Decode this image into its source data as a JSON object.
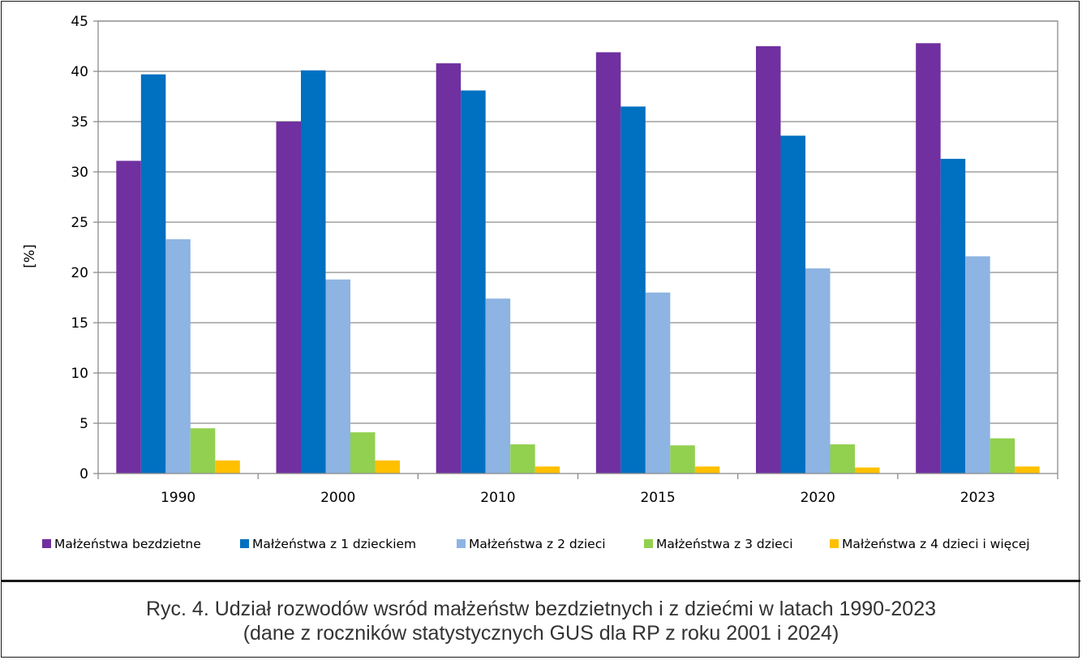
{
  "chart_data": {
    "type": "bar",
    "title": "",
    "xlabel": "",
    "ylabel": "[%]",
    "ylim": [
      0,
      45
    ],
    "ytick_step": 5,
    "yticks": [
      "0",
      "5",
      "10",
      "15",
      "20",
      "25",
      "30",
      "35",
      "40",
      "45"
    ],
    "grid": true,
    "legend_position": "bottom",
    "categories": [
      "1990",
      "2000",
      "2010",
      "2015",
      "2020",
      "2023"
    ],
    "series": [
      {
        "name": "Małżeństwa bezdzietne",
        "color": "#7030A0",
        "values": [
          31.1,
          35.0,
          40.8,
          41.9,
          42.5,
          42.8
        ]
      },
      {
        "name": "Małżeństwa z 1 dzieckiem",
        "color": "#0070C0",
        "values": [
          39.7,
          40.1,
          38.1,
          36.5,
          33.6,
          31.3
        ]
      },
      {
        "name": "Małżeństwa z 2 dzieci",
        "color": "#8DB4E2",
        "values": [
          23.3,
          19.3,
          17.4,
          18.0,
          20.4,
          21.6
        ]
      },
      {
        "name": "Małżeństwa z 3 dzieci",
        "color": "#92D050",
        "values": [
          4.5,
          4.1,
          2.9,
          2.8,
          2.9,
          3.5
        ]
      },
      {
        "name": "Małżeństwa z 4 dzieci i więcej",
        "color": "#FFC000",
        "values": [
          1.3,
          1.3,
          0.7,
          0.7,
          0.6,
          0.7
        ]
      }
    ]
  },
  "caption": {
    "line1": "Ryc. 4. Udział rozwodów wsród małżeństw bezdzietnych i z dziećmi w latach 1990-2023",
    "line2": "(dane z roczników statystycznych GUS dla RP z roku 2001 i 2024)"
  }
}
